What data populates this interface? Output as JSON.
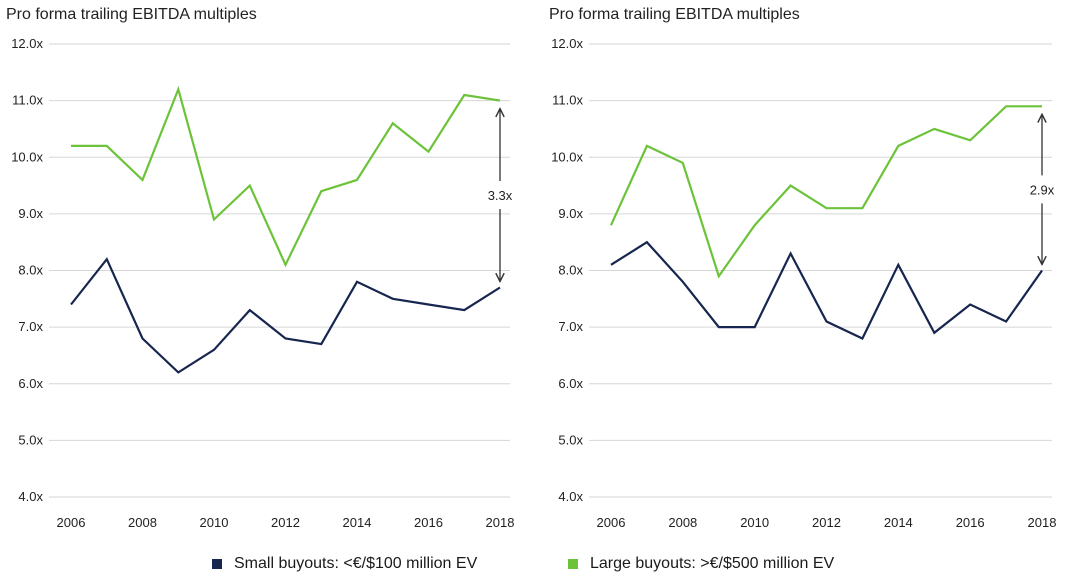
{
  "colors": {
    "small": "#16264f",
    "large": "#6cc33a",
    "grid": "#d6d6d6",
    "arrow": "#333333"
  },
  "legend": {
    "small_label": "Small buyouts: <€/$100 million EV",
    "large_label": "Large buyouts: >€/$500 million EV"
  },
  "chart_data": [
    {
      "type": "line",
      "title": "Pro forma trailing EBITDA multiples",
      "x": [
        2006,
        2007,
        2008,
        2009,
        2010,
        2011,
        2012,
        2013,
        2014,
        2015,
        2016,
        2017,
        2018
      ],
      "x_ticks": [
        "2006",
        "2008",
        "2010",
        "2012",
        "2014",
        "2016",
        "2018"
      ],
      "y_ticks": [
        "4.0x",
        "5.0x",
        "6.0x",
        "7.0x",
        "8.0x",
        "9.0x",
        "10.0x",
        "11.0x",
        "12.0x"
      ],
      "ylim": [
        4,
        12
      ],
      "grid": "horizontal",
      "series": [
        {
          "name": "Small buyouts: <€/$100 million EV",
          "color_key": "small",
          "values": [
            7.4,
            8.2,
            6.8,
            6.2,
            6.6,
            7.3,
            6.8,
            6.7,
            7.8,
            7.5,
            7.4,
            7.3,
            7.7
          ]
        },
        {
          "name": "Large buyouts: >€/$500 million EV",
          "color_key": "large",
          "values": [
            10.2,
            10.2,
            9.6,
            11.2,
            8.9,
            9.5,
            8.1,
            9.4,
            9.6,
            10.6,
            10.1,
            11.1,
            11.0
          ]
        }
      ],
      "annotation": {
        "label": "3.3x",
        "x": 2018,
        "from": 11.0,
        "to": 7.7
      }
    },
    {
      "type": "line",
      "title": "Pro forma trailing EBITDA multiples",
      "x": [
        2006,
        2007,
        2008,
        2009,
        2010,
        2011,
        2012,
        2013,
        2014,
        2015,
        2016,
        2017,
        2018
      ],
      "x_ticks": [
        "2006",
        "2008",
        "2010",
        "2012",
        "2014",
        "2016",
        "2018"
      ],
      "y_ticks": [
        "4.0x",
        "5.0x",
        "6.0x",
        "7.0x",
        "8.0x",
        "9.0x",
        "10.0x",
        "11.0x",
        "12.0x"
      ],
      "ylim": [
        4,
        12
      ],
      "grid": "horizontal",
      "series": [
        {
          "name": "Small buyouts: <€/$100 million EV",
          "color_key": "small",
          "values": [
            8.1,
            8.5,
            7.8,
            7.0,
            7.0,
            8.3,
            7.1,
            6.8,
            8.1,
            6.9,
            7.4,
            7.1,
            8.0
          ]
        },
        {
          "name": "Large buyouts: >€/$500 million EV",
          "color_key": "large",
          "values": [
            8.8,
            10.2,
            9.9,
            7.9,
            8.8,
            9.5,
            9.1,
            9.1,
            10.2,
            10.5,
            10.3,
            10.9,
            10.9
          ]
        }
      ],
      "annotation": {
        "label": "2.9x",
        "x": 2018,
        "from": 10.9,
        "to": 8.0
      }
    }
  ]
}
